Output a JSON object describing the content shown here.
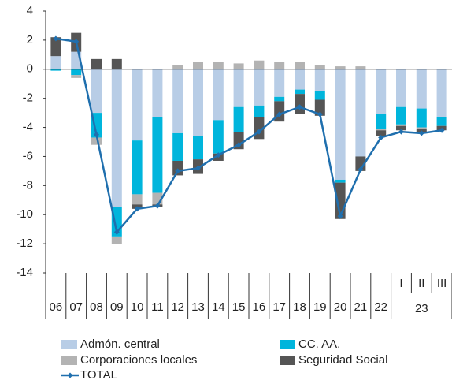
{
  "chart_data": {
    "type": "bar",
    "stacked": true,
    "categories": [
      "06",
      "07",
      "08",
      "09",
      "10",
      "11",
      "12",
      "13",
      "14",
      "15",
      "16",
      "17",
      "18",
      "19",
      "20",
      "21",
      "22",
      "I",
      "II",
      "III"
    ],
    "x_group_label": "23",
    "series": [
      {
        "name": "Admón. central",
        "color": "#b8cde6",
        "values": [
          0.9,
          1.2,
          -3.0,
          -9.5,
          -4.9,
          -3.3,
          -4.4,
          -4.6,
          -3.5,
          -2.6,
          -2.5,
          -1.9,
          -1.4,
          -1.5,
          -7.6,
          -6.0,
          -3.1,
          -2.6,
          -2.7,
          -3.3
        ]
      },
      {
        "name": "CC. AA.",
        "color": "#00b5dc",
        "values": [
          -0.1,
          -0.4,
          -1.7,
          -2.0,
          -3.7,
          -5.2,
          -1.9,
          -1.6,
          -2.3,
          -1.7,
          -0.8,
          -0.3,
          -0.3,
          -0.6,
          -0.2,
          0,
          -1.0,
          -1.2,
          -1.3,
          -0.6
        ]
      },
      {
        "name": "Corporaciones locales",
        "color": "#b3b3b3",
        "values": [
          0,
          -0.2,
          -0.5,
          -0.5,
          -0.7,
          -0.8,
          0.3,
          0.5,
          0.5,
          0.4,
          0.6,
          0.5,
          0.5,
          0.3,
          0.2,
          0.2,
          -0.1,
          -0.1,
          -0.1,
          0
        ]
      },
      {
        "name": "Seguridad Social",
        "color": "#555555",
        "values": [
          1.3,
          1.3,
          0.7,
          0.7,
          -0.3,
          -0.2,
          -1.0,
          -1.0,
          -0.5,
          -1.2,
          -1.5,
          -1.4,
          -1.4,
          -1.1,
          -2.5,
          -1.0,
          -0.4,
          -0.3,
          -0.3,
          -0.3
        ]
      },
      {
        "name": "TOTAL",
        "type": "line",
        "color": "#1f6fae",
        "values": [
          2.1,
          1.9,
          -4.5,
          -11.2,
          -9.6,
          -9.4,
          -7.0,
          -6.8,
          -5.9,
          -5.2,
          -4.3,
          -3.1,
          -2.6,
          -3.1,
          -10.1,
          -6.9,
          -4.7,
          -4.3,
          -4.4,
          -4.2
        ]
      }
    ],
    "ylim": [
      -14,
      4
    ],
    "yticks": [
      -14,
      -12,
      -10,
      -8,
      -6,
      -4,
      -2,
      0,
      2,
      4
    ],
    "grid": false,
    "legend": "bottom"
  }
}
